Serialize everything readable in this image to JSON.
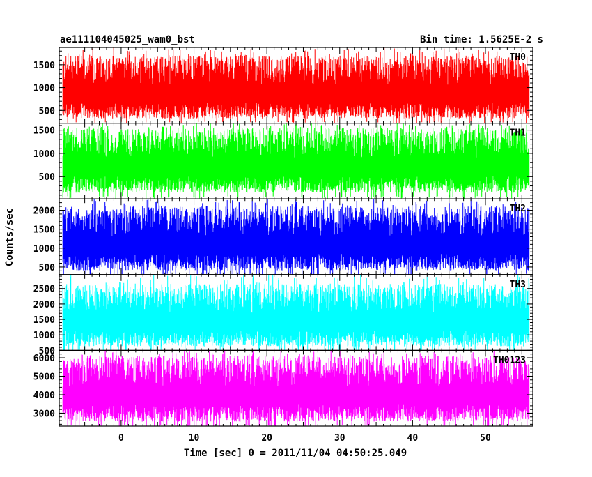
{
  "chart_data": {
    "type": "line",
    "title": "ae111104045025_wam0_bst",
    "subtitle": "Bin time: 1.5625E-2 s",
    "xlabel": "Time [sec] 0 = 2011/11/04 04:50:25.049",
    "ylabel": "Counts/sec",
    "xlim": [
      -8.5,
      56.5
    ],
    "x_data_range": [
      -8,
      56
    ],
    "xticks": [
      0,
      10,
      20,
      30,
      40,
      50
    ],
    "grid": false,
    "panels": [
      {
        "name": "TH0",
        "color": "#ff0000",
        "ylim": [
          220,
          1880
        ],
        "yticks": [
          500,
          1000,
          1500
        ],
        "baseline": 800,
        "band": [
          250,
          1700
        ],
        "spike_max": 1880
      },
      {
        "name": "TH1",
        "color": "#00ff00",
        "ylim": [
          20,
          1650
        ],
        "yticks": [
          500,
          1000,
          1500
        ],
        "baseline": 750,
        "band": [
          80,
          1550
        ],
        "spike_max": 1650
      },
      {
        "name": "TH2",
        "color": "#0000ff",
        "ylim": [
          300,
          2300
        ],
        "yticks": [
          500,
          1000,
          1500,
          2000
        ],
        "baseline": 1150,
        "band": [
          320,
          2100
        ],
        "spike_max": 2300
      },
      {
        "name": "TH3",
        "color": "#00ffff",
        "ylim": [
          500,
          2950
        ],
        "yticks": [
          500,
          1000,
          1500,
          2000,
          2500
        ],
        "baseline": 1700,
        "band": [
          520,
          2650
        ],
        "spike_max": 2950
      },
      {
        "name": "TH0123",
        "color": "#ff00ff",
        "ylim": [
          2300,
          6400
        ],
        "yticks": [
          3000,
          4000,
          5000,
          6000
        ],
        "baseline": 4300,
        "band": [
          2350,
          6100
        ],
        "spike_max": 6400
      }
    ]
  }
}
